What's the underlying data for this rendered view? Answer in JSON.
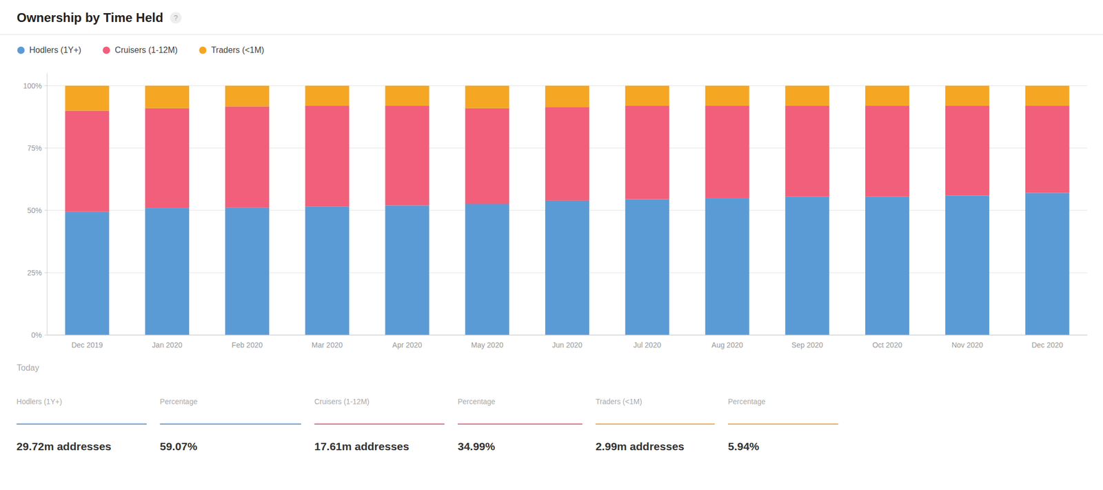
{
  "chart_data": {
    "type": "bar",
    "stacked": true,
    "title": "Ownership by Time Held",
    "annotations": [
      "?"
    ],
    "categories": [
      "Dec 2019",
      "Jan 2020",
      "Feb 2020",
      "Mar 2020",
      "Apr 2020",
      "May 2020",
      "Jun 2020",
      "Jul 2020",
      "Aug 2020",
      "Sep 2020",
      "Oct 2020",
      "Nov 2020",
      "Dec 2020"
    ],
    "series": [
      {
        "name": "Hodlers (1Y+)",
        "color": "#5b9bd5",
        "values": [
          49.5,
          51.0,
          51.2,
          51.5,
          52.0,
          52.5,
          54.0,
          54.5,
          55.0,
          55.5,
          55.5,
          56.0,
          57.0
        ]
      },
      {
        "name": "Cruisers (1-12M)",
        "color": "#f25f7a",
        "values": [
          40.5,
          40.0,
          40.5,
          40.5,
          40.0,
          38.5,
          37.5,
          37.5,
          37.0,
          36.5,
          36.5,
          36.0,
          35.0
        ]
      },
      {
        "name": "Traders (<1M)",
        "color": "#f5a623",
        "values": [
          10.0,
          9.0,
          8.3,
          8.0,
          8.0,
          9.0,
          8.5,
          8.0,
          8.0,
          8.0,
          8.0,
          8.0,
          8.0
        ]
      }
    ],
    "ylim": [
      0,
      105
    ],
    "yticks": [
      {
        "value": 0,
        "label": "0%"
      },
      {
        "value": 25,
        "label": "25%"
      },
      {
        "value": 50,
        "label": "50%"
      },
      {
        "value": 75,
        "label": "75%"
      },
      {
        "value": 100,
        "label": "100%"
      }
    ],
    "grid": true,
    "legend": "top-left",
    "stats": {
      "label": "Today",
      "headers": [
        "Hodlers (1Y+)",
        "Percentage",
        "Cruisers (1-12M)",
        "Percentage",
        "Traders (<1M)",
        "Percentage"
      ],
      "values": [
        "29.72m addresses",
        "59.07%",
        "17.61m addresses",
        "34.99%",
        "2.99m addresses",
        "5.94%"
      ]
    }
  }
}
